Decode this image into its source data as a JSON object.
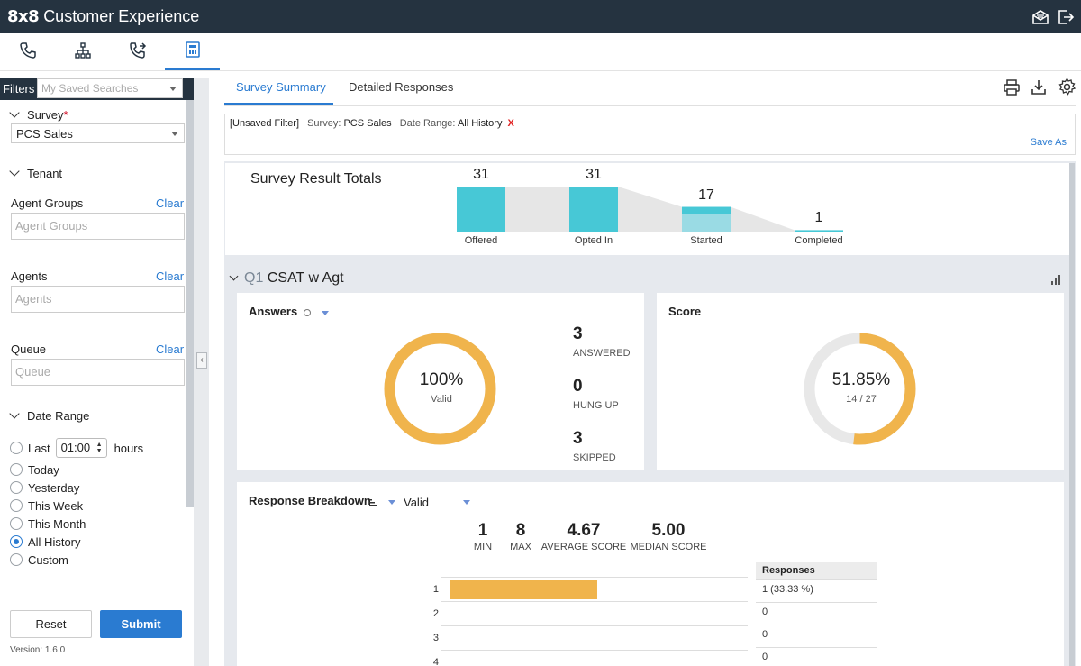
{
  "app": {
    "logo": "8x8",
    "title": "Customer Experience"
  },
  "top_icons": [
    "mail-open-icon",
    "sign-out-icon"
  ],
  "nav_tabs": [
    {
      "icon": "phone-icon",
      "active": false
    },
    {
      "icon": "org-chart-icon",
      "active": false
    },
    {
      "icon": "phone-forward-icon",
      "active": false
    },
    {
      "icon": "calculator-report-icon",
      "active": true
    }
  ],
  "sidebar": {
    "filters_label": "Filters",
    "saved_search_placeholder": "My Saved Searches",
    "survey": {
      "label": "Survey",
      "required_mark": "*",
      "value": "PCS Sales"
    },
    "tenant": {
      "label": "Tenant"
    },
    "agent_groups": {
      "label": "Agent Groups",
      "clear": "Clear",
      "placeholder": "Agent Groups"
    },
    "agents": {
      "label": "Agents",
      "clear": "Clear",
      "placeholder": "Agents"
    },
    "queue": {
      "label": "Queue",
      "clear": "Clear",
      "placeholder": "Queue"
    },
    "date_range": {
      "label": "Date Range",
      "last_label": "Last",
      "last_value": "01:00",
      "last_unit": "hours",
      "options": [
        "Today",
        "Yesterday",
        "This Week",
        "This Month",
        "All History",
        "Custom"
      ],
      "selected": "All History"
    },
    "reset_label": "Reset",
    "submit_label": "Submit",
    "version": "Version: 1.6.0"
  },
  "tabs": [
    {
      "label": "Survey Summary",
      "active": true
    },
    {
      "label": "Detailed Responses",
      "active": false
    }
  ],
  "toolbar_icons": [
    "print-icon",
    "download-icon",
    "gear-icon"
  ],
  "filter_bar": {
    "unsaved": "[Unsaved Filter]",
    "survey_key": "Survey:",
    "survey_value": "PCS Sales",
    "date_key": "Date Range:",
    "date_value": "All History",
    "remove": "X",
    "save_as": "Save As"
  },
  "survey_totals": {
    "title": "Survey Result Totals",
    "stages": [
      {
        "label": "Offered",
        "value": 31
      },
      {
        "label": "Opted In",
        "value": 31
      },
      {
        "label": "Started",
        "value": 17
      },
      {
        "label": "Completed",
        "value": 1
      }
    ],
    "colors": {
      "bar": "#47c8d6",
      "bar_light": "#9adbe4",
      "funnel": "#e6e6e6"
    }
  },
  "question": {
    "number": "Q1",
    "title": "CSAT w Agt",
    "answers": {
      "title": "Answers",
      "donut_percent": "100%",
      "donut_label": "Valid",
      "donut_fill": 1.0,
      "stats": [
        {
          "value": "3",
          "label": "ANSWERED"
        },
        {
          "value": "0",
          "label": "HUNG UP"
        },
        {
          "value": "3",
          "label": "SKIPPED"
        }
      ]
    },
    "score": {
      "title": "Score",
      "percent": "51.85%",
      "fraction": "14 / 27",
      "fill": 0.5185
    },
    "breakdown": {
      "title": "Response Breakdown",
      "filter_value": "Valid",
      "metrics": [
        {
          "value": "1",
          "label": "MIN"
        },
        {
          "value": "8",
          "label": "MAX"
        },
        {
          "value": "4.67",
          "label": "AVERAGE SCORE"
        },
        {
          "value": "5.00",
          "label": "MEDIAN SCORE"
        }
      ],
      "rows": [
        "1",
        "2",
        "3",
        "4"
      ],
      "bar_fractions": [
        0.3333,
        0,
        0,
        0
      ],
      "responses_header": "Responses",
      "responses": [
        "1 (33.33 %)",
        "0",
        "0",
        "0"
      ]
    }
  },
  "colors": {
    "accent": "#2a7bd1",
    "orange": "#f0b44c",
    "topbar": "#253340",
    "donut_track": "#e8e8e8"
  }
}
